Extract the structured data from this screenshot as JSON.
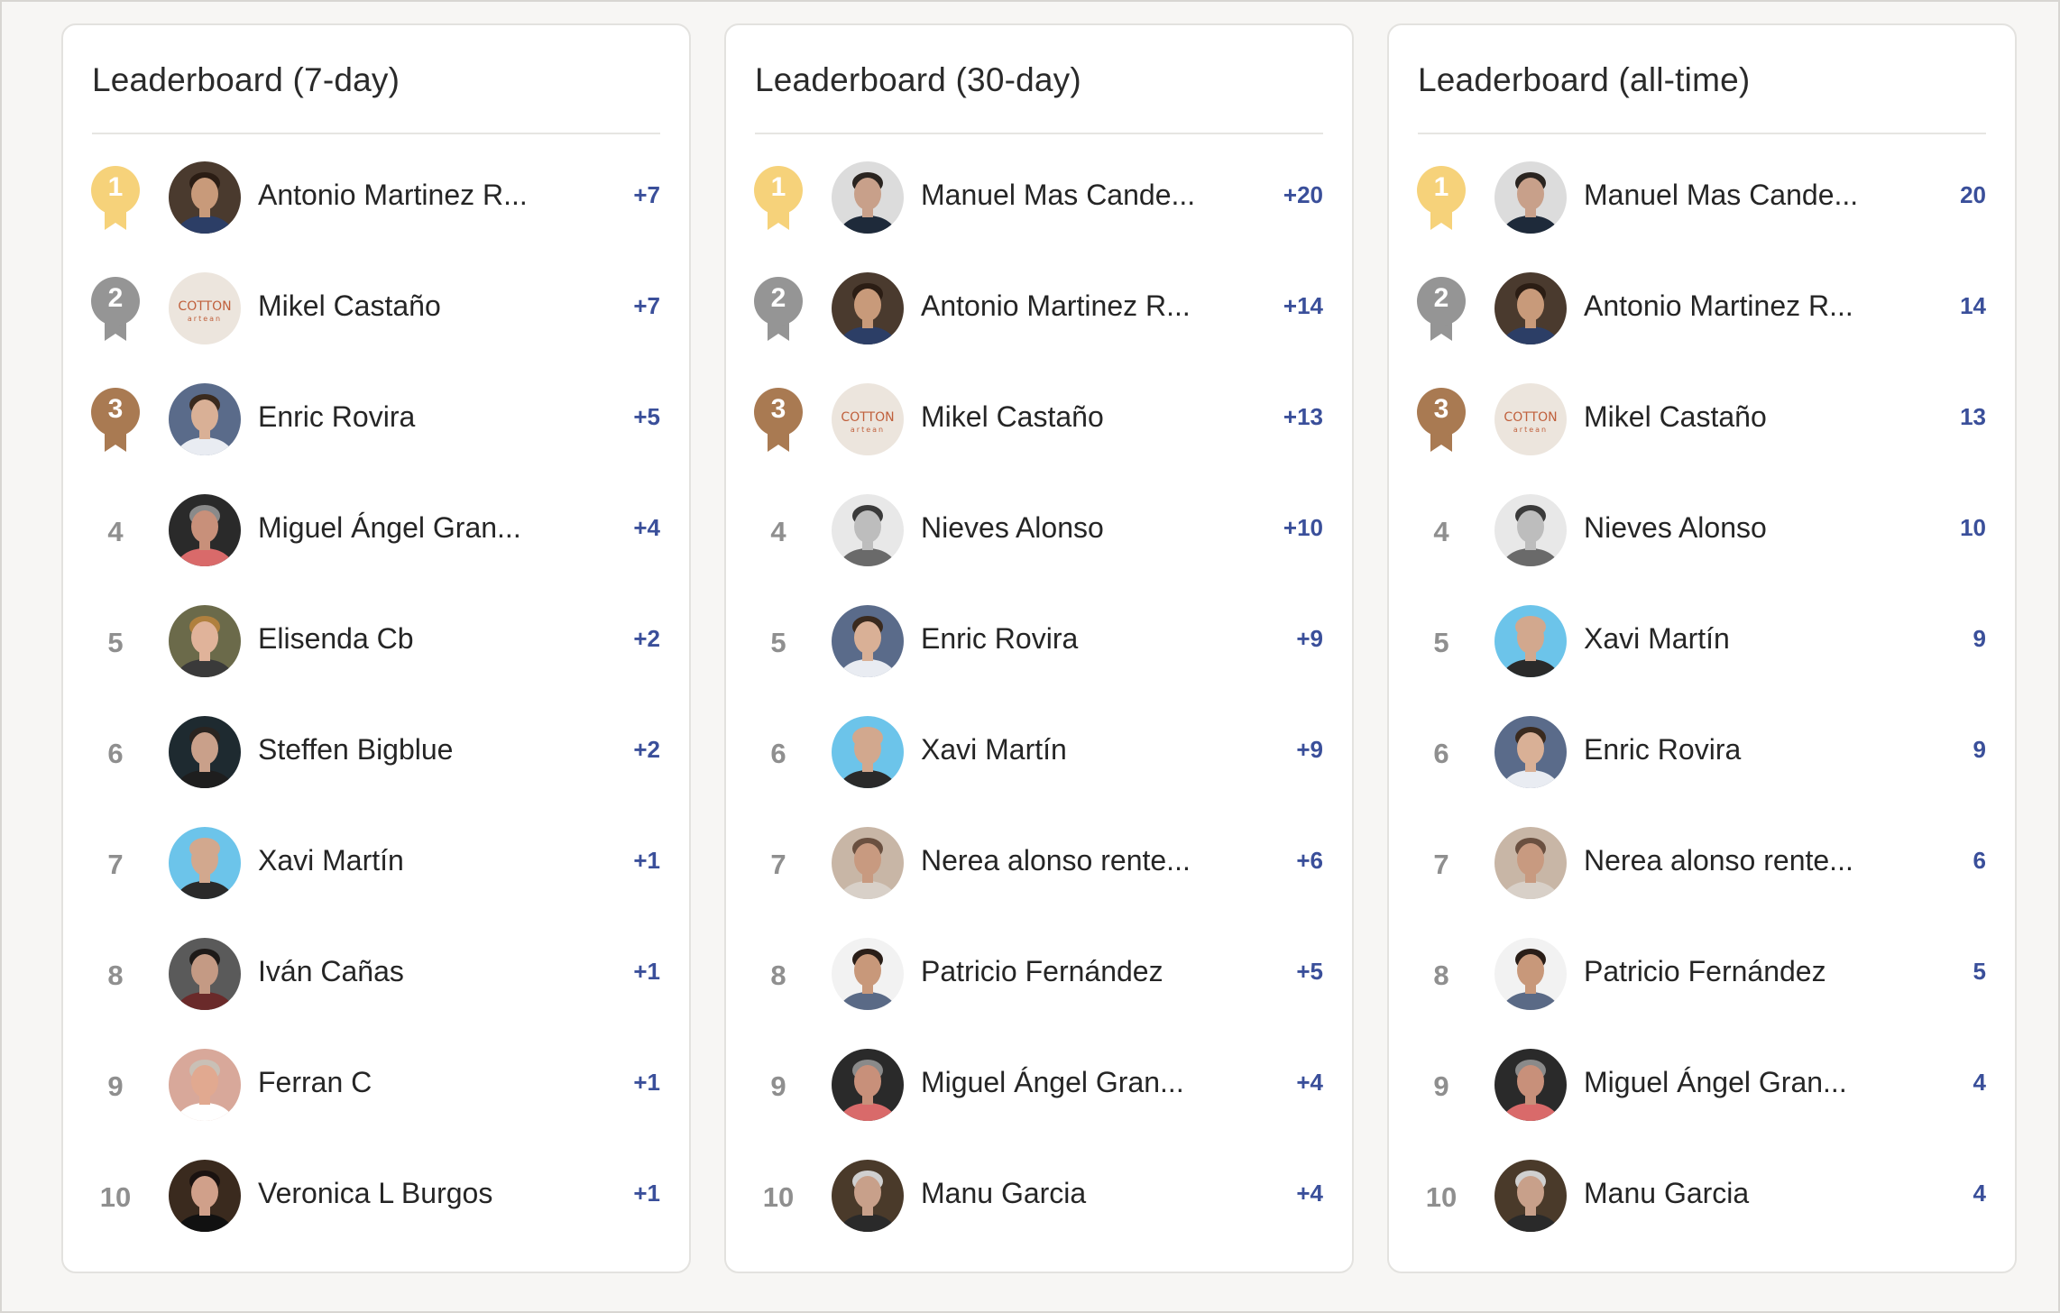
{
  "boards": [
    {
      "title": "Leaderboard (7-day)",
      "entries": [
        {
          "rank": "1",
          "name": "Antonio Martinez R...",
          "score": "+7",
          "avatar": "suit-man"
        },
        {
          "rank": "2",
          "name": "Mikel Castaño",
          "score": "+7",
          "avatar": "cotton-logo"
        },
        {
          "rank": "3",
          "name": "Enric Rovira",
          "score": "+5",
          "avatar": "striped-man"
        },
        {
          "rank": "4",
          "name": "Miguel Ángel Gran...",
          "score": "+4",
          "avatar": "red-shirt-man"
        },
        {
          "rank": "5",
          "name": "Elisenda Cb",
          "score": "+2",
          "avatar": "smiling-woman"
        },
        {
          "rank": "6",
          "name": "Steffen Bigblue",
          "score": "+2",
          "avatar": "dark-man"
        },
        {
          "rank": "7",
          "name": "Xavi Martín",
          "score": "+1",
          "avatar": "bald-man-blue"
        },
        {
          "rank": "8",
          "name": "Iván Cañas",
          "score": "+1",
          "avatar": "beard-man"
        },
        {
          "rank": "9",
          "name": "Ferran C",
          "score": "+1",
          "avatar": "older-man"
        },
        {
          "rank": "10",
          "name": "Veronica L Burgos",
          "score": "+1",
          "avatar": "dark-hair-woman"
        }
      ]
    },
    {
      "title": "Leaderboard (30-day)",
      "entries": [
        {
          "rank": "1",
          "name": "Manuel Mas Cande...",
          "score": "+20",
          "avatar": "pointing-man"
        },
        {
          "rank": "2",
          "name": "Antonio Martinez R...",
          "score": "+14",
          "avatar": "suit-man"
        },
        {
          "rank": "3",
          "name": "Mikel Castaño",
          "score": "+13",
          "avatar": "cotton-logo"
        },
        {
          "rank": "4",
          "name": "Nieves Alonso",
          "score": "+10",
          "avatar": "bw-woman"
        },
        {
          "rank": "5",
          "name": "Enric Rovira",
          "score": "+9",
          "avatar": "striped-man"
        },
        {
          "rank": "6",
          "name": "Xavi Martín",
          "score": "+9",
          "avatar": "bald-man-blue"
        },
        {
          "rank": "7",
          "name": "Nerea alonso rente...",
          "score": "+6",
          "avatar": "curly-woman"
        },
        {
          "rank": "8",
          "name": "Patricio Fernández",
          "score": "+5",
          "avatar": "long-hair-man"
        },
        {
          "rank": "9",
          "name": "Miguel Ángel Gran...",
          "score": "+4",
          "avatar": "red-shirt-man"
        },
        {
          "rank": "10",
          "name": "Manu Garcia",
          "score": "+4",
          "avatar": "grey-beard-man"
        }
      ]
    },
    {
      "title": "Leaderboard (all-time)",
      "entries": [
        {
          "rank": "1",
          "name": "Manuel Mas Cande...",
          "score": "20",
          "avatar": "pointing-man"
        },
        {
          "rank": "2",
          "name": "Antonio Martinez R...",
          "score": "14",
          "avatar": "suit-man"
        },
        {
          "rank": "3",
          "name": "Mikel Castaño",
          "score": "13",
          "avatar": "cotton-logo"
        },
        {
          "rank": "4",
          "name": "Nieves Alonso",
          "score": "10",
          "avatar": "bw-woman"
        },
        {
          "rank": "5",
          "name": "Xavi Martín",
          "score": "9",
          "avatar": "bald-man-blue"
        },
        {
          "rank": "6",
          "name": "Enric Rovira",
          "score": "9",
          "avatar": "striped-man"
        },
        {
          "rank": "7",
          "name": "Nerea alonso rente...",
          "score": "6",
          "avatar": "curly-woman"
        },
        {
          "rank": "8",
          "name": "Patricio Fernández",
          "score": "5",
          "avatar": "long-hair-man"
        },
        {
          "rank": "9",
          "name": "Miguel Ángel Gran...",
          "score": "4",
          "avatar": "red-shirt-man"
        },
        {
          "rank": "10",
          "name": "Manu Garcia",
          "score": "4",
          "avatar": "grey-beard-man"
        }
      ]
    }
  ],
  "colors": {
    "gold": "#f6d27a",
    "silver": "#959595",
    "bronze": "#a97a52",
    "score": "#3a4f9a",
    "rank_text": "#8f8f8f"
  },
  "avatar_styles": {
    "suit-man": {
      "bg": "#4a3a2e",
      "skin": "#c89a7a",
      "hair": "#2b1d14",
      "shirt": "#2c3e66"
    },
    "cotton-logo": {
      "bg": "#ece5dd",
      "logo_text": "COTTON",
      "logo_sub": "artean",
      "logo_color": "#c0603c"
    },
    "striped-man": {
      "bg": "#5a6b8a",
      "skin": "#d9b096",
      "hair": "#3a2a1e",
      "shirt": "#e9ecf2"
    },
    "red-shirt-man": {
      "bg": "#2a2a2a",
      "skin": "#c8907a",
      "hair": "#8a8a8a",
      "shirt": "#d96a6a"
    },
    "smiling-woman": {
      "bg": "#6b6a4a",
      "skin": "#e0b39a",
      "hair": "#b0803e",
      "shirt": "#3a3a3a"
    },
    "dark-man": {
      "bg": "#1e2a30",
      "skin": "#c9a08a",
      "hair": "#2a2420",
      "shirt": "#1e1e1e"
    },
    "bald-man-blue": {
      "bg": "#6cc4ea",
      "skin": "#d2a88e",
      "hair": "#d2a88e",
      "shirt": "#2a2a2a"
    },
    "beard-man": {
      "bg": "#5a5a5a",
      "skin": "#c49a84",
      "hair": "#1e1a18",
      "shirt": "#6a2a2a"
    },
    "older-man": {
      "bg": "#d8a89a",
      "skin": "#e1a990",
      "hair": "#c9c0b6",
      "shirt": "#ffffff"
    },
    "dark-hair-woman": {
      "bg": "#3a2a1e",
      "skin": "#d0a08a",
      "hair": "#1a1210",
      "shirt": "#111111"
    },
    "pointing-man": {
      "bg": "#dcdcdc",
      "skin": "#c8a08a",
      "hair": "#2a2420",
      "shirt": "#1e2a3a"
    },
    "bw-woman": {
      "bg": "#e8e8e8",
      "skin": "#bdbdbd",
      "hair": "#3a3a3a",
      "shirt": "#6a6a6a"
    },
    "curly-woman": {
      "bg": "#c8b6a6",
      "skin": "#c89a80",
      "hair": "#6a5040",
      "shirt": "#d8d0c8"
    },
    "long-hair-man": {
      "bg": "#f2f2f2",
      "skin": "#c8987a",
      "hair": "#2a1e18",
      "shirt": "#5a6a86"
    },
    "grey-beard-man": {
      "bg": "#4a3a2a",
      "skin": "#c8a08a",
      "hair": "#d0d0d0",
      "shirt": "#2a2a2a"
    }
  }
}
